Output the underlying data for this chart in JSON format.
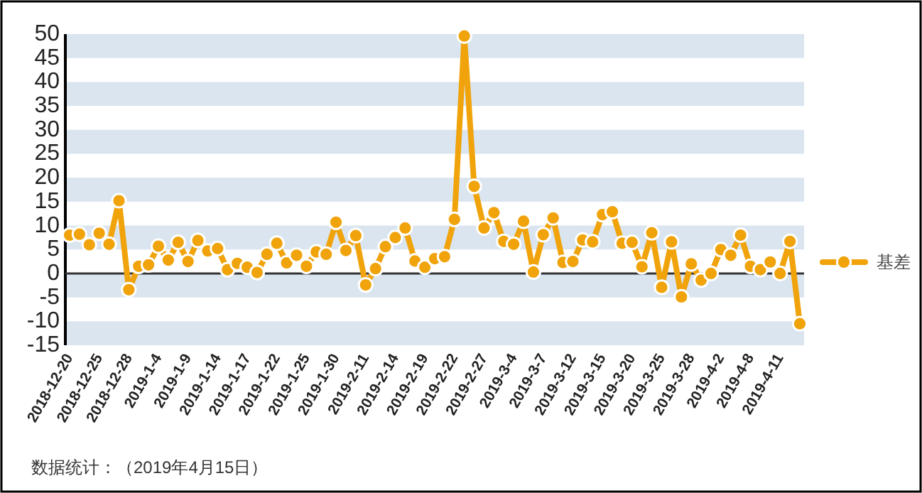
{
  "chart_data": {
    "type": "line",
    "categories": [
      "2018-12-20",
      null,
      null,
      "2018-12-25",
      null,
      null,
      "2018-12-28",
      null,
      null,
      "2019-1-4",
      null,
      null,
      "2019-1-9",
      null,
      null,
      "2019-1-14",
      null,
      null,
      "2019-1-17",
      null,
      null,
      "2019-1-22",
      null,
      null,
      "2019-1-25",
      null,
      null,
      "2019-1-30",
      null,
      null,
      "2019-2-11",
      null,
      null,
      "2019-2-14",
      null,
      null,
      "2019-2-19",
      null,
      null,
      "2019-2-22",
      null,
      null,
      "2019-2-27",
      null,
      null,
      "2019-3-4",
      null,
      null,
      "2019-3-7",
      null,
      null,
      "2019-3-12",
      null,
      null,
      "2019-3-15",
      null,
      null,
      "2019-3-20",
      null,
      null,
      "2019-3-25",
      null,
      null,
      "2019-3-28",
      null,
      null,
      "2019-4-2",
      null,
      null,
      "2019-4-8",
      null,
      null,
      "2019-4-11",
      null,
      null
    ],
    "series": [
      {
        "name": "基差",
        "color": "#f0a30a",
        "values": [
          8.0,
          8.2,
          6.0,
          8.4,
          6.1,
          15.2,
          -3.4,
          1.5,
          1.8,
          5.7,
          2.8,
          6.5,
          2.5,
          6.9,
          4.7,
          5.2,
          0.8,
          2.1,
          1.3,
          0.2,
          4.0,
          6.3,
          2.2,
          3.8,
          1.5,
          4.5,
          4.0,
          10.7,
          4.8,
          7.9,
          -2.4,
          1.0,
          5.6,
          7.5,
          9.5,
          2.6,
          1.3,
          3.1,
          3.5,
          11.3,
          49.6,
          18.2,
          9.5,
          12.7,
          6.7,
          6.1,
          10.9,
          0.3,
          8.1,
          11.6,
          2.3,
          2.5,
          7.0,
          6.6,
          12.3,
          12.9,
          6.3,
          6.5,
          1.4,
          8.5,
          -2.9,
          6.6,
          -4.9,
          2.0,
          -1.4,
          0.0,
          5.0,
          3.8,
          8.0,
          1.5,
          0.8,
          2.4,
          0.0,
          6.7,
          -10.5
        ]
      }
    ],
    "ylim": [
      -15,
      50
    ],
    "yticks": [
      -15,
      -10,
      -5,
      0,
      5,
      10,
      15,
      20,
      25,
      30,
      35,
      40,
      45,
      50
    ],
    "grid": "y",
    "legend": "right",
    "marker": "circle",
    "line_style": "solid",
    "annotations": [
      "数据统计：（2019年4月15日）"
    ]
  }
}
